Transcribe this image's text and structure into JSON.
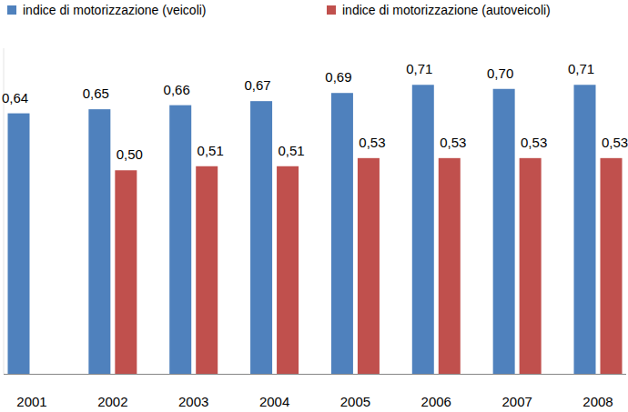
{
  "chart_data": {
    "type": "bar",
    "categories": [
      "2001",
      "2002",
      "2003",
      "2004",
      "2005",
      "2006",
      "2007",
      "2008"
    ],
    "series": [
      {
        "name": "indice di motorizzazione (veicoli)",
        "color": "#4f81bd",
        "values": [
          0.64,
          0.65,
          0.66,
          0.67,
          0.69,
          0.71,
          0.7,
          0.71
        ],
        "value_labels": [
          "0,64",
          "0,65",
          "0,66",
          "0,67",
          "0,69",
          "0,71",
          "0,70",
          "0,71"
        ]
      },
      {
        "name": "indice di motorizzazione (autoveicoli)",
        "color": "#c0504d",
        "values": [
          null,
          0.5,
          0.51,
          0.51,
          0.53,
          0.53,
          0.53,
          0.53
        ],
        "value_labels": [
          null,
          "0,50",
          "0,51",
          "0,51",
          "0,53",
          "0,53",
          "0,53",
          "0,53"
        ]
      }
    ],
    "ylim": [
      0,
      0.8
    ],
    "data_labels": true,
    "tick_labels": "x",
    "legend": "top",
    "grid": false
  }
}
